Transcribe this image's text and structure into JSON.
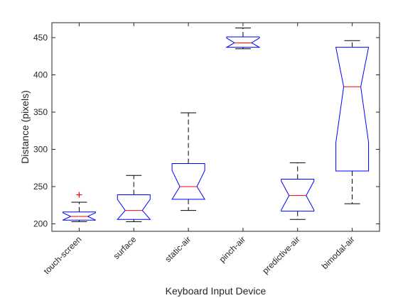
{
  "chart_data": {
    "type": "box",
    "title": "",
    "xlabel": "Keyboard Input Device",
    "ylabel": "Distance (pixels)",
    "ylim": [
      190,
      470
    ],
    "yticks": [
      200,
      250,
      300,
      350,
      400,
      450
    ],
    "grid": false,
    "notched": true,
    "colors": {
      "box": "#0000ff",
      "median": "#ff0000",
      "whisker": "#000000",
      "outlier": "#ff0000",
      "axis": "#262626"
    },
    "categories": [
      "touch-screen",
      "surface",
      "static-air",
      "pinch-air",
      "predictive-air",
      "bimodal-air"
    ],
    "boxes": [
      {
        "category": "touch-screen",
        "whisker_low": 203,
        "q1": 205,
        "median": 210,
        "q3": 216,
        "whisker_high": 229,
        "outliers": [
          239
        ]
      },
      {
        "category": "surface",
        "whisker_low": 203,
        "q1": 206,
        "median": 218,
        "q3": 239,
        "whisker_high": 265,
        "outliers": []
      },
      {
        "category": "static-air",
        "whisker_low": 218,
        "q1": 233,
        "median": 250,
        "q3": 281,
        "whisker_high": 349,
        "outliers": []
      },
      {
        "category": "pinch-air",
        "whisker_low": 435,
        "q1": 437,
        "median": 443,
        "q3": 451,
        "whisker_high": 463,
        "outliers": []
      },
      {
        "category": "predictive-air",
        "whisker_low": 206,
        "q1": 217,
        "median": 238,
        "q3": 260,
        "whisker_high": 282,
        "outliers": []
      },
      {
        "category": "bimodal-air",
        "whisker_low": 227,
        "q1": 271,
        "median": 384,
        "q3": 437,
        "whisker_high": 446,
        "outliers": []
      }
    ]
  }
}
